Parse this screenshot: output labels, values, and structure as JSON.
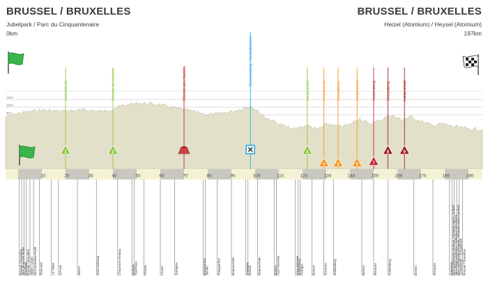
{
  "header": {
    "start_city": "BRUSSEL / BRUXELLES",
    "start_venue": "Jubelpark / Parc du Cinquantenaire",
    "start_km": "0km",
    "end_city": "BRUSSEL / BRUXELLES",
    "end_venue": "Heizel (Atomium) / Heysel (Atomium)",
    "end_km": "197km"
  },
  "colors": {
    "terrain": "#e2e0c9",
    "terrain_edge": "#c7c4a9",
    "green": "#8dc63f",
    "orange": "#f7941d",
    "red": "#c1272d",
    "darkred": "#9e1b1f",
    "blue": "#29abe2",
    "axis_light": "#f4f2d4",
    "axis_dark": "#c9c8c0"
  },
  "altitude_labels": [
    "150m",
    "100m",
    "50m"
  ],
  "km_ticks": [
    "10",
    "20",
    "30",
    "40",
    "50",
    "60",
    "70",
    "80",
    "90",
    "100",
    "110",
    "120",
    "130",
    "140",
    "150",
    "160",
    "170",
    "180",
    "190"
  ],
  "markers": [
    {
      "km": 20,
      "label": "Lanesstraat",
      "type": "green",
      "num": "1"
    },
    {
      "km": 40,
      "label": "Chemin de l'Herme",
      "type": "green",
      "num": "2"
    },
    {
      "km": 70,
      "label": "Chemin des Carriers",
      "type": "cobble",
      "num": ""
    },
    {
      "km": 98,
      "label": "Bevoorrading / Ravitaillement",
      "type": "feed",
      "num": ""
    },
    {
      "km": 122,
      "label": "Langestraat",
      "type": "green",
      "num": "3"
    },
    {
      "km": 129,
      "label": "Vossenberg",
      "type": "orange",
      "num": "4"
    },
    {
      "km": 135,
      "label": "Smeysberg",
      "type": "orange",
      "num": "5"
    },
    {
      "km": 143,
      "label": "Langestraat",
      "type": "orange",
      "num": "6"
    },
    {
      "km": 150,
      "label": "Vossenberg",
      "type": "red",
      "num": "7"
    },
    {
      "km": 156,
      "label": "Smeysberg",
      "type": "darkred",
      "num": "8"
    },
    {
      "km": 163,
      "label": "Langestraat",
      "type": "darkred",
      "num": "9"
    }
  ],
  "places": [
    {
      "km": 0.5,
      "label": "Brussel / Bruxelles"
    },
    {
      "km": 1.5,
      "label": "Sint-Joost-ten-Node"
    },
    {
      "km": 2.5,
      "label": "Etterbeek"
    },
    {
      "km": 3.5,
      "label": "Brussel / Bruxelles"
    },
    {
      "km": 5,
      "label": "Ukkel / Uccle"
    },
    {
      "km": 6.5,
      "label": "Sint-Genesius-Rode"
    },
    {
      "km": 9,
      "label": "Rixensart"
    },
    {
      "km": 14,
      "label": "La Hulpe"
    },
    {
      "km": 17,
      "label": "Genval"
    },
    {
      "km": 25,
      "label": "Wavre"
    },
    {
      "km": 33,
      "label": "Grez-Doiceau"
    },
    {
      "km": 42,
      "label": "Chaumont-Gistoux"
    },
    {
      "km": 48,
      "label": "Walhain"
    },
    {
      "km": 49,
      "label": "Tourinnes"
    },
    {
      "km": 53,
      "label": "Perwez"
    },
    {
      "km": 60,
      "label": "Incourt"
    },
    {
      "km": 66,
      "label": "Jodoigne"
    },
    {
      "km": 78,
      "label": "Hoegaarden"
    },
    {
      "km": 79,
      "label": "Tienen"
    },
    {
      "km": 84,
      "label": "Hoegaarden"
    },
    {
      "km": 90,
      "label": "Beauvechain"
    },
    {
      "km": 96,
      "label": "Jodoigne"
    },
    {
      "km": 97,
      "label": "Bossut"
    },
    {
      "km": 101,
      "label": "Beauvechain"
    },
    {
      "km": 108,
      "label": "Bertem"
    },
    {
      "km": 109,
      "label": "Oud-Heverlee"
    },
    {
      "km": 117,
      "label": "Grez-Doiceau"
    },
    {
      "km": 118,
      "label": "Huldenberg"
    },
    {
      "km": 119,
      "label": "Overijse"
    },
    {
      "km": 124,
      "label": "Bertem"
    },
    {
      "km": 129,
      "label": "Tervuren"
    },
    {
      "km": 133,
      "label": "Huldenberg"
    },
    {
      "km": 145,
      "label": "Bertem"
    },
    {
      "km": 150,
      "label": "Tervuren"
    },
    {
      "km": 156,
      "label": "Huldenberg"
    },
    {
      "km": 167,
      "label": "Bertem"
    },
    {
      "km": 175,
      "label": "Tervuren"
    },
    {
      "km": 182,
      "label": "Kraainem"
    },
    {
      "km": 183,
      "label": "Sint-Lambrechts-Woluwe / Woluwe-Saint-Lambert"
    },
    {
      "km": 184,
      "label": "Sint-Pieters-Woluwe / Woluwe-Saint-Pierre"
    },
    {
      "km": 185,
      "label": "Sint-Lambrechts-Woluwe / Woluwe-Saint-Lambert"
    },
    {
      "km": 186,
      "label": "Schaerbeek / Schaarbeek"
    },
    {
      "km": 187.5,
      "label": "Brussel / Bruxelles"
    }
  ]
}
